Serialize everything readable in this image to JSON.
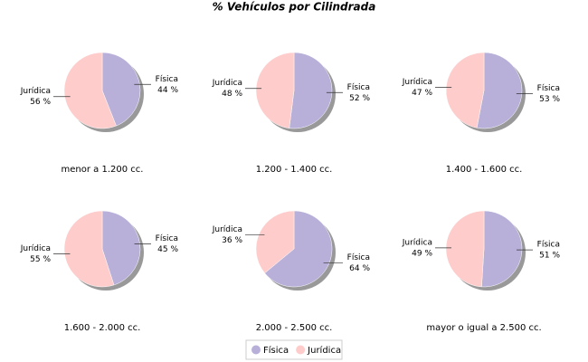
{
  "title": "% Vehículos por Cilindrada",
  "chart_data": [
    {
      "type": "pie",
      "title": "menor a 1.200 cc.",
      "categories": [
        "Física",
        "Jurídica"
      ],
      "values": [
        44,
        56
      ],
      "value_labels": [
        "44 %",
        "56 %"
      ],
      "colors": [
        "#b8b0d8",
        "#ffcccc"
      ]
    },
    {
      "type": "pie",
      "title": "1.200 - 1.400 cc.",
      "categories": [
        "Física",
        "Jurídica"
      ],
      "values": [
        52,
        48
      ],
      "value_labels": [
        "52 %",
        "48 %"
      ],
      "colors": [
        "#b8b0d8",
        "#ffcccc"
      ]
    },
    {
      "type": "pie",
      "title": "1.400 - 1.600 cc.",
      "categories": [
        "Física",
        "Jurídica"
      ],
      "values": [
        53,
        47
      ],
      "value_labels": [
        "53 %",
        "47 %"
      ],
      "colors": [
        "#b8b0d8",
        "#ffcccc"
      ]
    },
    {
      "type": "pie",
      "title": "1.600 - 2.000 cc.",
      "categories": [
        "Física",
        "Jurídica"
      ],
      "values": [
        45,
        55
      ],
      "value_labels": [
        "45 %",
        "55 %"
      ],
      "colors": [
        "#b8b0d8",
        "#ffcccc"
      ]
    },
    {
      "type": "pie",
      "title": "2.000 - 2.500 cc.",
      "categories": [
        "Física",
        "Jurídica"
      ],
      "values": [
        64,
        36
      ],
      "value_labels": [
        "64 %",
        "36 %"
      ],
      "colors": [
        "#b8b0d8",
        "#ffcccc"
      ]
    },
    {
      "type": "pie",
      "title": "mayor o igual a 2.500 cc.",
      "categories": [
        "Física",
        "Jurídica"
      ],
      "values": [
        51,
        49
      ],
      "value_labels": [
        "51 %",
        "49 %"
      ],
      "colors": [
        "#b8b0d8",
        "#ffcccc"
      ]
    }
  ]
}
